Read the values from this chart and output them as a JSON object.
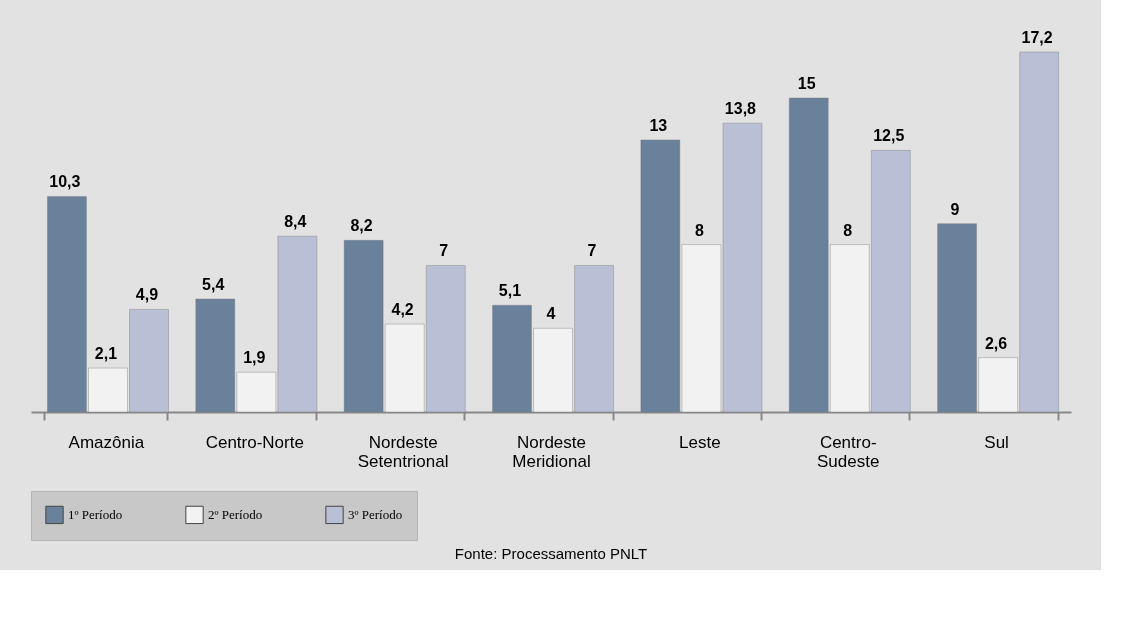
{
  "chart_data": {
    "type": "bar",
    "categories": [
      "Amazônia",
      "Centro-Norte",
      "Nordeste Setentrional",
      "Nordeste Meridional",
      "Leste",
      "Centro-Sudeste",
      "Sul"
    ],
    "series": [
      {
        "name": "1º Período",
        "color": "#6a819c",
        "values": [
          10.3,
          5.4,
          8.2,
          5.1,
          13,
          15,
          9
        ],
        "value_labels": [
          "10,3",
          "5,4",
          "8,2",
          "5,1",
          "13",
          "15",
          "9"
        ]
      },
      {
        "name": "2º Período",
        "color": "#f2f2f2",
        "values": [
          2.1,
          1.9,
          4.2,
          4,
          8,
          8,
          2.6
        ],
        "value_labels": [
          "2,1",
          "1,9",
          "4,2",
          "4",
          "8",
          "8",
          "2,6"
        ]
      },
      {
        "name": "3º Período",
        "color": "#b9bfd4",
        "values": [
          4.9,
          8.4,
          7,
          7,
          13.8,
          12.5,
          17.2
        ],
        "value_labels": [
          "4,9",
          "8,4",
          "7",
          "7",
          "13,8",
          "12,5",
          "17,2"
        ]
      }
    ],
    "legend": "bottom",
    "annotations": [
      "Fonte: Processamento PNLT"
    ]
  }
}
